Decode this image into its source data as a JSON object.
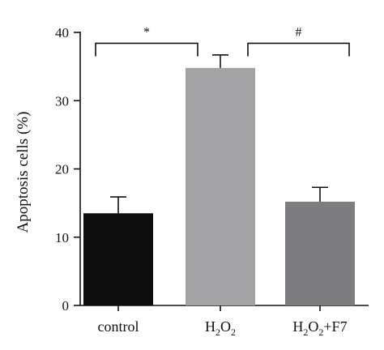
{
  "chart_data": {
    "type": "bar",
    "categories": [
      "control",
      "H2O2",
      "H2O2+F7"
    ],
    "category_labels": [
      [
        {
          "t": "control",
          "sub": false
        }
      ],
      [
        {
          "t": "H",
          "sub": false
        },
        {
          "t": "2",
          "sub": true
        },
        {
          "t": "O",
          "sub": false
        },
        {
          "t": "2",
          "sub": true
        }
      ],
      [
        {
          "t": "H",
          "sub": false
        },
        {
          "t": "2",
          "sub": true
        },
        {
          "t": "O",
          "sub": false
        },
        {
          "t": "2",
          "sub": true
        },
        {
          "t": "+F7",
          "sub": false
        }
      ]
    ],
    "values": [
      13.5,
      34.8,
      15.2
    ],
    "errors": [
      2.4,
      1.9,
      2.1
    ],
    "colors": [
      "#0d0d0d",
      "#a3a3a5",
      "#7d7d7f"
    ],
    "ylabel": "Apoptosis cells (%)",
    "xlabel": "",
    "ylim": [
      0,
      40
    ],
    "yticks": [
      0,
      10,
      20,
      30,
      40
    ],
    "grid": false,
    "significance": [
      {
        "from": 0,
        "to": 1,
        "label": "*",
        "level": 38.4
      },
      {
        "from": 1,
        "to": 2,
        "label": "#",
        "level": 38.4
      }
    ]
  }
}
